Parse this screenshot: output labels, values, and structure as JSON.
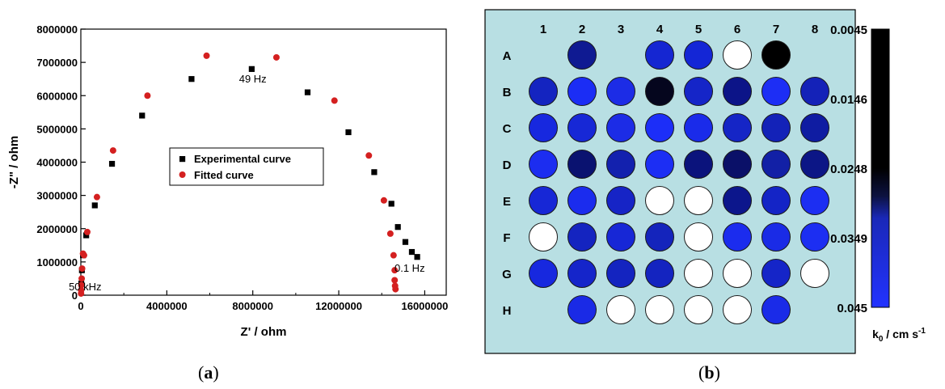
{
  "panels": {
    "a_label_open": "(",
    "a_label_letter": "a",
    "a_label_close": ")",
    "b_label_open": "(",
    "b_label_letter": "b",
    "b_label_close": ")"
  },
  "chart_data": [
    {
      "type": "scatter",
      "xlabel": "Z' / ohm",
      "ylabel": "-Z\" / ohm",
      "xlim": [
        0,
        17000000
      ],
      "ylim": [
        0,
        8000000
      ],
      "x_ticks": [
        0,
        4000000,
        8000000,
        12000000,
        16000000
      ],
      "x_tick_labels": [
        "0",
        "4000000",
        "8000000",
        "12000000",
        "16000000"
      ],
      "y_ticks": [
        0,
        1000000,
        2000000,
        3000000,
        4000000,
        5000000,
        6000000,
        7000000,
        8000000
      ],
      "y_tick_labels": [
        "0",
        "1000000",
        "2000000",
        "3000000",
        "4000000",
        "5000000",
        "6000000",
        "7000000",
        "8000000"
      ],
      "grid": false,
      "legend_position": "center",
      "series": [
        {
          "name": "Experimental curve",
          "marker": "square",
          "color": "#000000",
          "x": [
            20000,
            50000,
            100000,
            250000,
            650000,
            1450000,
            2850000,
            5150000,
            7950000,
            10550000,
            12450000,
            13650000,
            14450000,
            14750000,
            15100000,
            15400000,
            15650000
          ],
          "y": [
            350000,
            750000,
            1200000,
            1800000,
            2700000,
            3950000,
            5400000,
            6500000,
            6800000,
            6100000,
            4900000,
            3700000,
            2750000,
            2050000,
            1600000,
            1300000,
            1150000
          ]
        },
        {
          "name": "Fitted curve",
          "marker": "circle",
          "color": "#d42020",
          "x": [
            10000,
            15000,
            25000,
            40000,
            60000,
            100000,
            150000,
            300000,
            750000,
            1500000,
            3100000,
            5850000,
            9100000,
            11800000,
            13400000,
            14100000,
            14400000,
            14550000,
            14600000,
            14600000,
            14620000,
            14640000
          ],
          "y": [
            50000,
            150000,
            300000,
            500000,
            800000,
            1250000,
            1200000,
            1900000,
            2950000,
            4350000,
            6000000,
            7200000,
            7150000,
            5850000,
            4200000,
            2850000,
            1850000,
            1200000,
            750000,
            450000,
            280000,
            180000
          ]
        }
      ],
      "annotations": [
        {
          "text": "49 Hz",
          "x": 8000000,
          "y": 6400000
        },
        {
          "text": "50 kHz",
          "x": 200000,
          "y": 150000
        },
        {
          "text": "0.1 Hz",
          "x": 15300000,
          "y": 700000
        }
      ]
    },
    {
      "type": "heatmap",
      "columns": [
        "1",
        "2",
        "3",
        "4",
        "5",
        "6",
        "7",
        "8"
      ],
      "rows": [
        "A",
        "B",
        "C",
        "D",
        "E",
        "F",
        "G",
        "H"
      ],
      "background_color": "#b8dfe3",
      "empty_color": "#ffffff",
      "cells": [
        [
          "",
          "#0f1a92",
          "",
          "#1526d2",
          "#1426d6",
          "#ffffff",
          "#000000",
          ""
        ],
        [
          "#1424c0",
          "#1b2df5",
          "#1c2ce6",
          "#05061e",
          "#1525c8",
          "#0c1488",
          "#1d2ef5",
          "#1422b8"
        ],
        [
          "#1728df",
          "#1728d6",
          "#1c2ce6",
          "#1c2ef8",
          "#1a2bea",
          "#1525c6",
          "#1322b8",
          "#0f1ca2"
        ],
        [
          "#1c2df0",
          "#0a1270",
          "#1321ae",
          "#1c2ef4",
          "#0b137c",
          "#0a1068",
          "#1220a6",
          "#0c1686"
        ],
        [
          "#1727d6",
          "#1b2cee",
          "#1624c6",
          "#ffffff",
          "#ffffff",
          "#0c168c",
          "#1424c6",
          "#1c2ef2"
        ],
        [
          "#ffffff",
          "#1424c0",
          "#1727d6",
          "#1424bc",
          "#ffffff",
          "#1b2cee",
          "#1a2be6",
          "#1c2ef2"
        ],
        [
          "#1728df",
          "#1525ca",
          "#1424c0",
          "#1424c0",
          "#ffffff",
          "#ffffff",
          "#1525c8",
          "#ffffff"
        ],
        [
          "",
          "#1a2ae6",
          "#ffffff",
          "#ffffff",
          "#ffffff",
          "#ffffff",
          "#1a2be8",
          ""
        ]
      ],
      "colorbar": {
        "tick_labels": [
          "0.0045",
          "0.0146",
          "0.0248",
          "0.0349",
          "0.045"
        ],
        "label_main": "k",
        "label_sub": "0",
        "label_unit": " / cm s",
        "label_sup": "-1",
        "gradient_stops": [
          {
            "offset": 0.0,
            "color": "#000000"
          },
          {
            "offset": 0.5,
            "color": "#000000"
          },
          {
            "offset": 0.6,
            "color": "#0c1240"
          },
          {
            "offset": 0.68,
            "color": "#1a28b8"
          },
          {
            "offset": 1.0,
            "color": "#2233ff"
          }
        ]
      }
    }
  ]
}
